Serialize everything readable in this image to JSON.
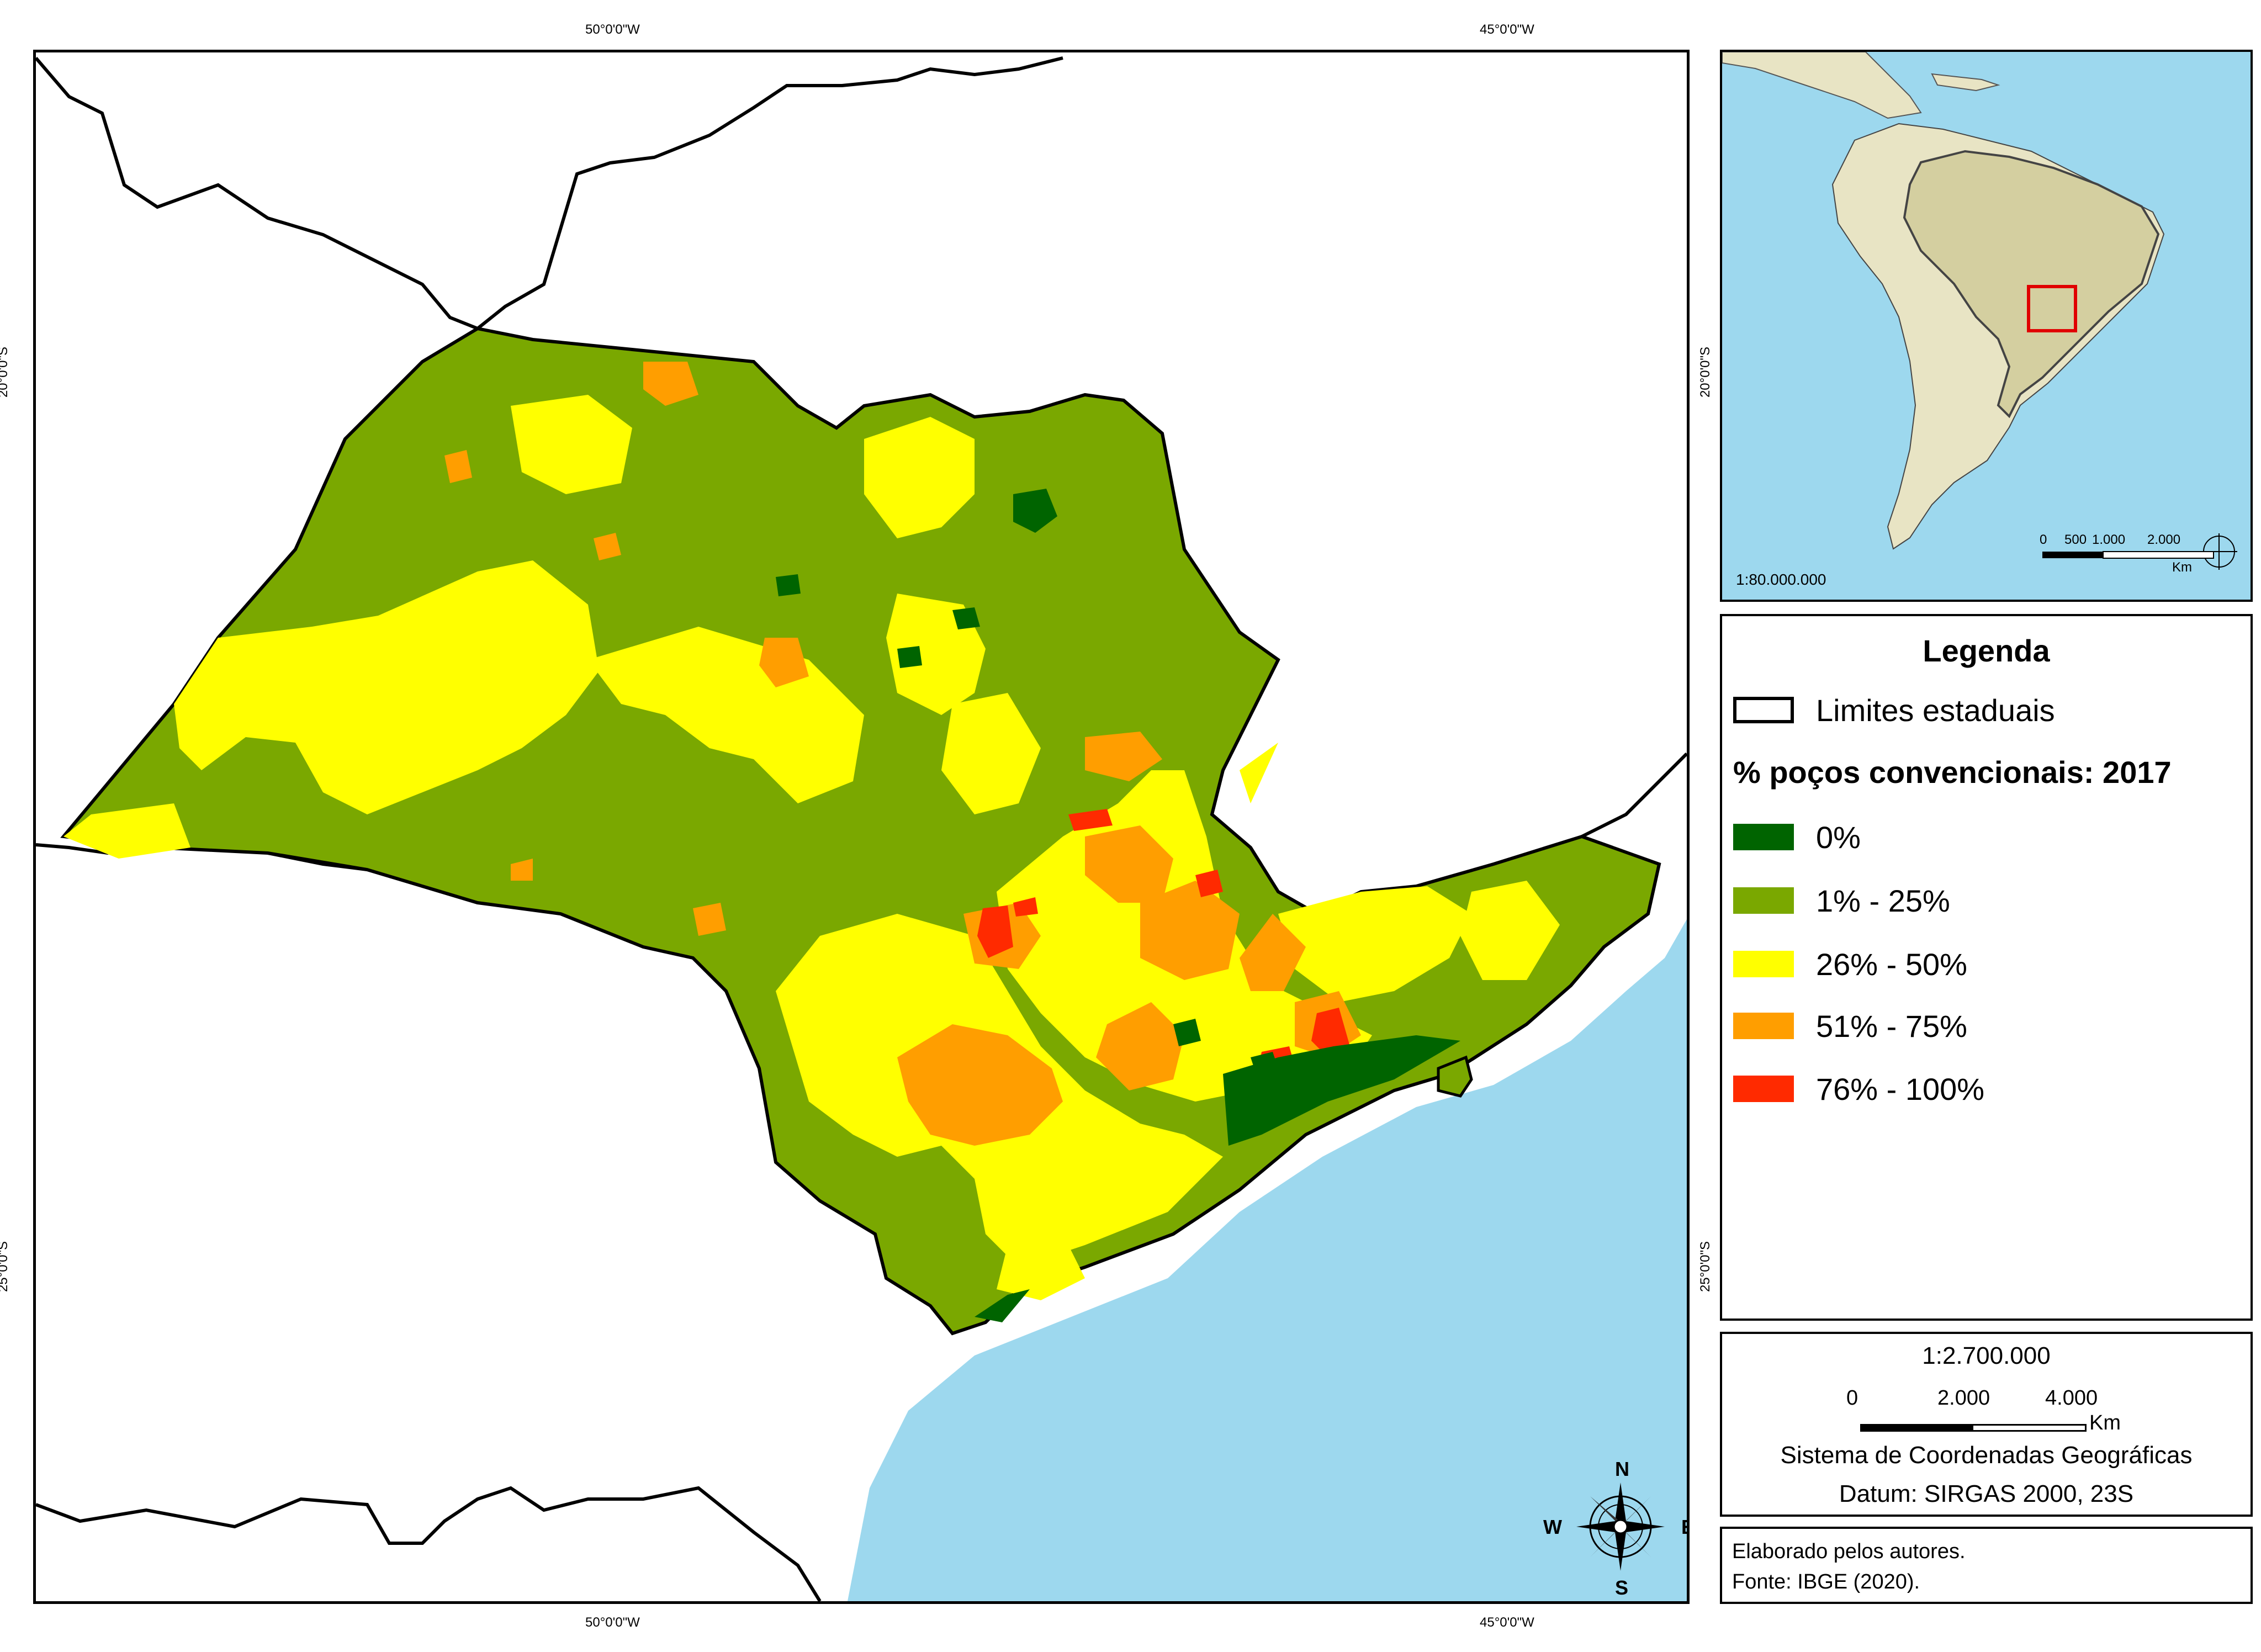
{
  "graticule": {
    "top_lon_left": "50°0'0\"W",
    "top_lon_right": "45°0'0\"W",
    "bottom_lon_left": "50°0'0\"W",
    "bottom_lon_right": "45°0'0\"W",
    "left_lat_top": "20°0'0\"S",
    "left_lat_bottom": "25°0'0\"S",
    "right_lat_top": "20°0'0\"S",
    "right_lat_bottom": "25°0'0\"S"
  },
  "compass": {
    "n": "N",
    "s": "S",
    "e": "E",
    "w": "W"
  },
  "inset": {
    "scale_ratio": "1:80.000.000",
    "scale_ticks": [
      "0",
      "500",
      "1.000",
      "2.000"
    ],
    "scale_unit": "Km"
  },
  "legend": {
    "title": "Legenda",
    "boundary_label": "Limites estaduais",
    "heading": "% poços convencionais: 2017",
    "classes": [
      {
        "label": "0%",
        "color": "#006400"
      },
      {
        "label": "1% - 25%",
        "color": "#7aa800"
      },
      {
        "label": "26% - 50%",
        "color": "#ffff00"
      },
      {
        "label": "51% - 75%",
        "color": "#ff9e00"
      },
      {
        "label": "76% - 100%",
        "color": "#ff2a00"
      }
    ]
  },
  "scale": {
    "ratio": "1:2.700.000",
    "ticks": [
      "0",
      "2.000",
      "4.000"
    ],
    "unit": "Km",
    "crs_line1": "Sistema de Coordenadas Geográficas",
    "crs_line2": "Datum: SIRGAS 2000, 23S"
  },
  "credits": {
    "line1": "Elaborado pelos autores.",
    "line2": "Fonte: IBGE (2020)."
  },
  "colors": {
    "ocean": "#9dd8ee",
    "land_inset": "#e8e4c4",
    "brazil_inset": "#d4cfa0",
    "highlight": "#e00000"
  }
}
